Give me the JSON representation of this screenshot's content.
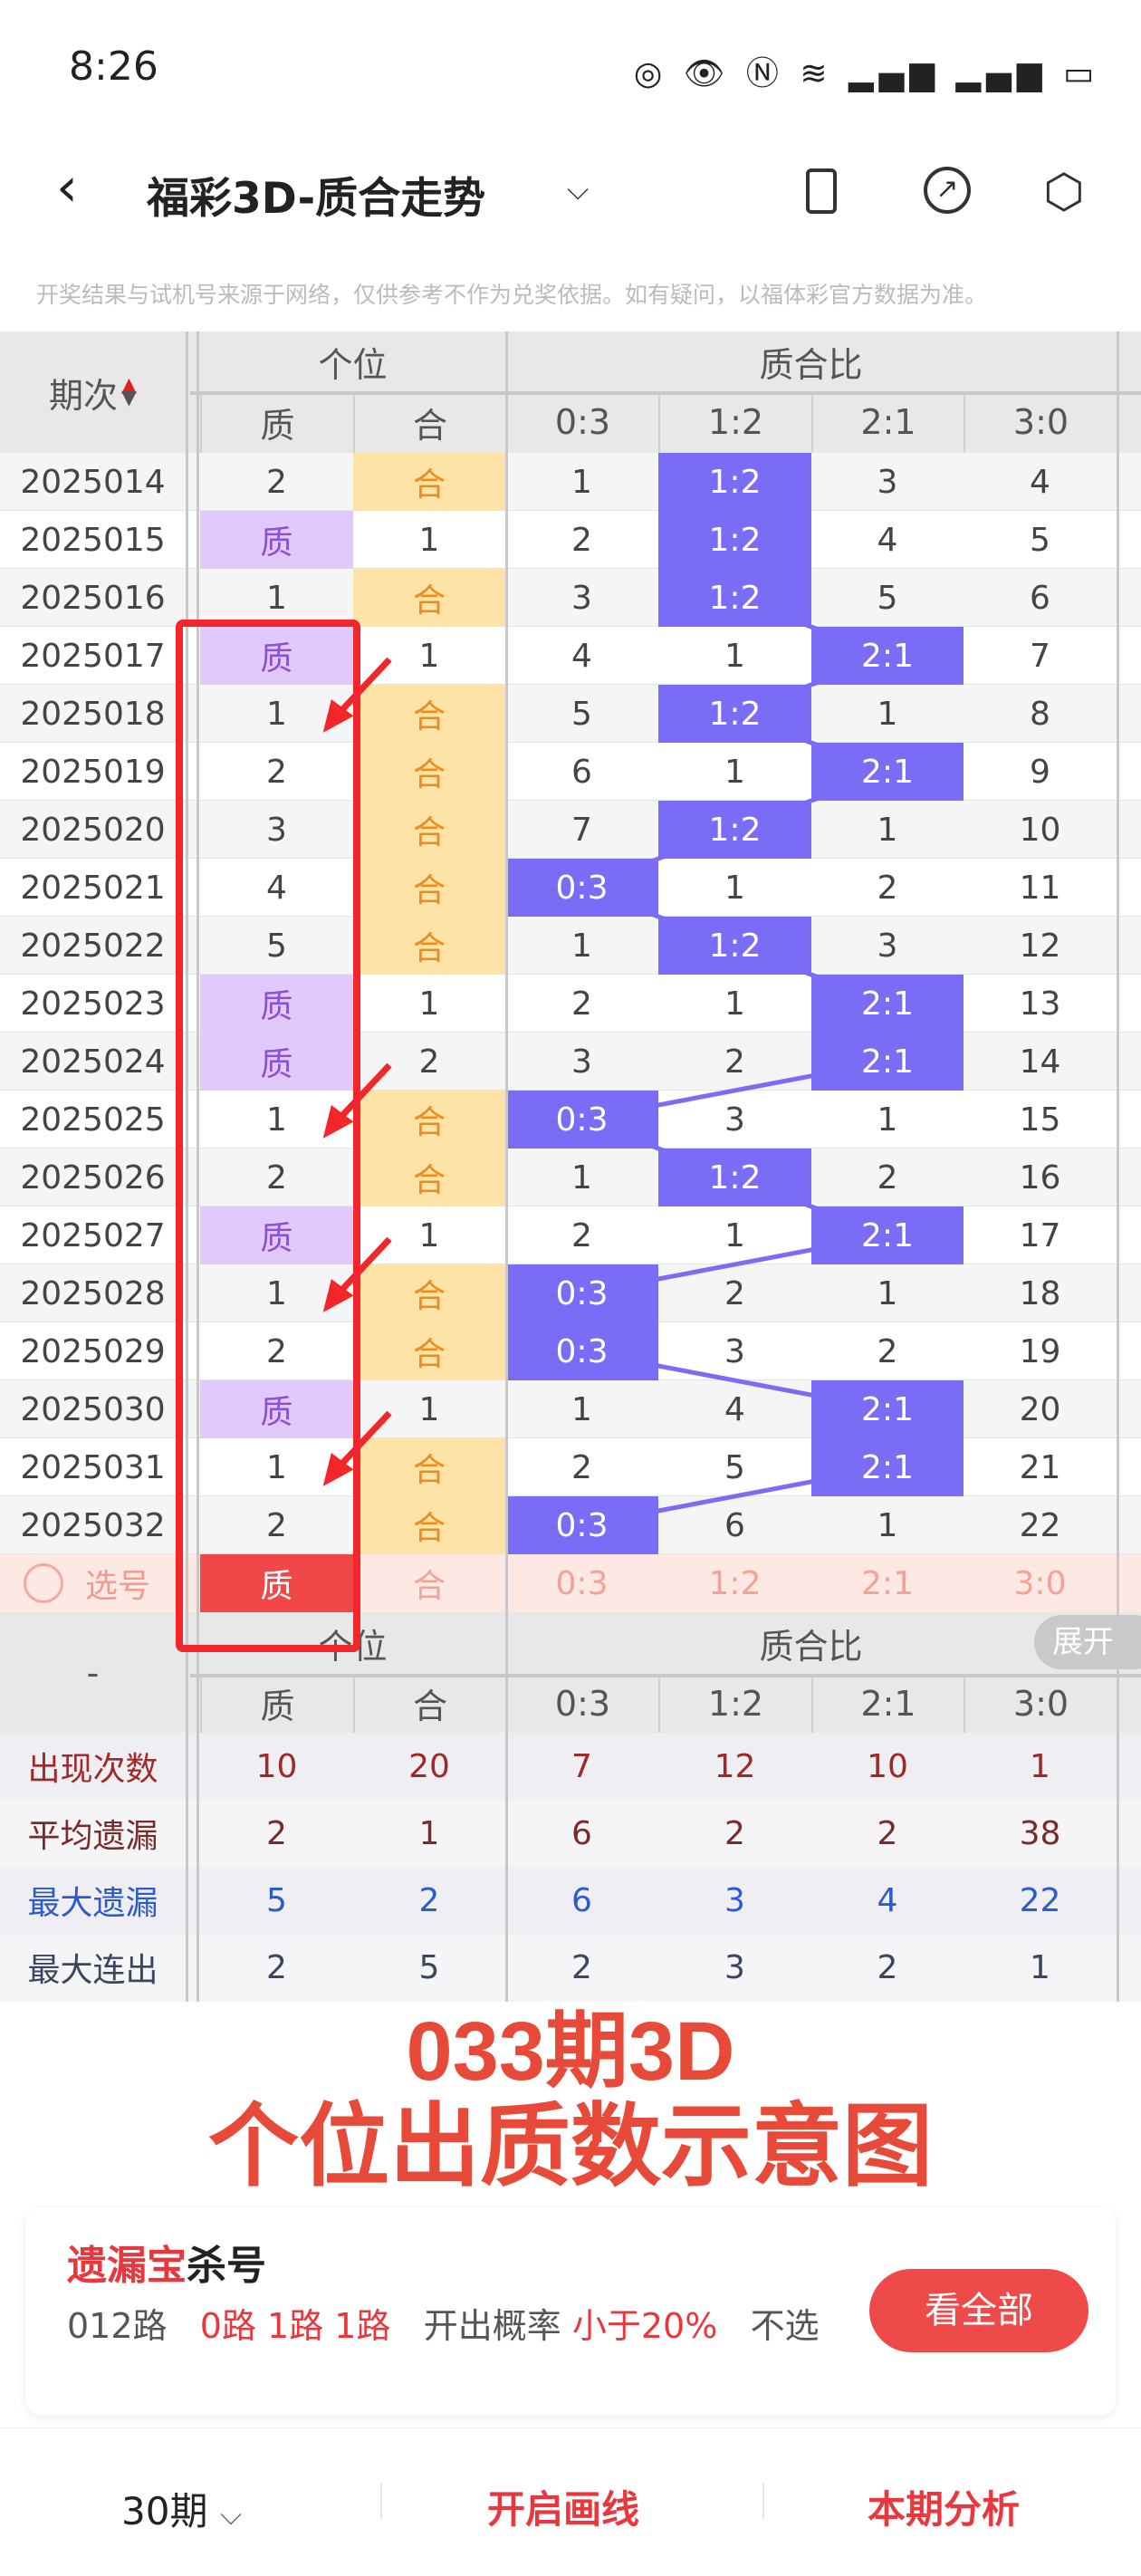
{
  "status_bar": {
    "time": "8:26",
    "icons": [
      "nfc-icon",
      "eye-icon",
      "nfc-n-icon",
      "wifi-6-icon",
      "signal-icon",
      "signal-icon",
      "battery-icon"
    ]
  },
  "header": {
    "title": "福彩3D-质合走势",
    "back_icon": "chevron-left-icon",
    "dropdown_icon": "chevron-down-icon",
    "actions": [
      "phone-landscape-icon",
      "share-icon",
      "settings-icon"
    ]
  },
  "notice": "开奖结果与试机号来源于网络，仅供参考不作为兑奖依据。如有疑问，以福体彩官方数据为准。",
  "table": {
    "period_header": "期次",
    "group_headers": [
      "个位",
      "质合比"
    ],
    "columns": [
      "质",
      "合",
      "0:3",
      "1:2",
      "2:1",
      "3:0"
    ],
    "rows": [
      {
        "period": "2025014",
        "unit": [
          "2",
          "合"
        ],
        "ratio": [
          "1",
          "1:2",
          "3",
          "4"
        ]
      },
      {
        "period": "2025015",
        "unit": [
          "质",
          "1"
        ],
        "ratio": [
          "2",
          "1:2",
          "4",
          "5"
        ]
      },
      {
        "period": "2025016",
        "unit": [
          "1",
          "合"
        ],
        "ratio": [
          "3",
          "1:2",
          "5",
          "6"
        ]
      },
      {
        "period": "2025017",
        "unit": [
          "质",
          "1"
        ],
        "ratio": [
          "4",
          "1",
          "2:1",
          "7"
        ]
      },
      {
        "period": "2025018",
        "unit": [
          "1",
          "合"
        ],
        "ratio": [
          "5",
          "1:2",
          "1",
          "8"
        ]
      },
      {
        "period": "2025019",
        "unit": [
          "2",
          "合"
        ],
        "ratio": [
          "6",
          "1",
          "2:1",
          "9"
        ]
      },
      {
        "period": "2025020",
        "unit": [
          "3",
          "合"
        ],
        "ratio": [
          "7",
          "1:2",
          "1",
          "10"
        ]
      },
      {
        "period": "2025021",
        "unit": [
          "4",
          "合"
        ],
        "ratio": [
          "0:3",
          "1",
          "2",
          "11"
        ]
      },
      {
        "period": "2025022",
        "unit": [
          "5",
          "合"
        ],
        "ratio": [
          "1",
          "1:2",
          "3",
          "12"
        ]
      },
      {
        "period": "2025023",
        "unit": [
          "质",
          "1"
        ],
        "ratio": [
          "2",
          "1",
          "2:1",
          "13"
        ]
      },
      {
        "period": "2025024",
        "unit": [
          "质",
          "2"
        ],
        "ratio": [
          "3",
          "2",
          "2:1",
          "14"
        ]
      },
      {
        "period": "2025025",
        "unit": [
          "1",
          "合"
        ],
        "ratio": [
          "0:3",
          "3",
          "1",
          "15"
        ]
      },
      {
        "period": "2025026",
        "unit": [
          "2",
          "合"
        ],
        "ratio": [
          "1",
          "1:2",
          "2",
          "16"
        ]
      },
      {
        "period": "2025027",
        "unit": [
          "质",
          "1"
        ],
        "ratio": [
          "2",
          "1",
          "2:1",
          "17"
        ]
      },
      {
        "period": "2025028",
        "unit": [
          "1",
          "合"
        ],
        "ratio": [
          "0:3",
          "2",
          "1",
          "18"
        ]
      },
      {
        "period": "2025029",
        "unit": [
          "2",
          "合"
        ],
        "ratio": [
          "0:3",
          "3",
          "2",
          "19"
        ]
      },
      {
        "period": "2025030",
        "unit": [
          "质",
          "1"
        ],
        "ratio": [
          "1",
          "4",
          "2:1",
          "20"
        ]
      },
      {
        "period": "2025031",
        "unit": [
          "1",
          "合"
        ],
        "ratio": [
          "2",
          "5",
          "2:1",
          "21"
        ]
      },
      {
        "period": "2025032",
        "unit": [
          "2",
          "合"
        ],
        "ratio": [
          "0:3",
          "6",
          "1",
          "22"
        ]
      }
    ],
    "select_row": {
      "label": "选号",
      "values": [
        "质",
        "合",
        "0:3",
        "1:2",
        "2:1",
        "3:0"
      ]
    }
  },
  "stats": {
    "corner": "-",
    "expand_label": "展开",
    "rows": [
      {
        "label": "出现次数",
        "values": [
          "10",
          "20",
          "7",
          "12",
          "10",
          "1"
        ],
        "color": "#a02828"
      },
      {
        "label": "平均遗漏",
        "values": [
          "2",
          "1",
          "6",
          "2",
          "2",
          "38"
        ],
        "color": "#7a2a2a"
      },
      {
        "label": "最大遗漏",
        "values": [
          "5",
          "2",
          "6",
          "3",
          "4",
          "22"
        ],
        "color": "#2c5bd0"
      },
      {
        "label": "最大连出",
        "values": [
          "2",
          "5",
          "2",
          "3",
          "2",
          "1"
        ],
        "color": "#3a4560"
      }
    ]
  },
  "annotation": {
    "line1": "033期3D",
    "line2": "个位出质数示意图",
    "color": "#e84a3a"
  },
  "card": {
    "title_red": "遗漏宝",
    "title_black": "杀号",
    "route_label": "012路",
    "routes": "0路 1路 1路",
    "prob_label": "开出概率",
    "prob_value": "小于20%",
    "suffix": "不选",
    "button": "看全部"
  },
  "bottom": {
    "periods": "30期",
    "draw_lines": "开启画线",
    "analysis": "本期分析"
  },
  "colors": {
    "purple": "#7b6cf6",
    "light_purple": "#e2c9fb",
    "yellow": "#fde3a7",
    "orange": "#f08a1d",
    "red": "#f04848"
  }
}
